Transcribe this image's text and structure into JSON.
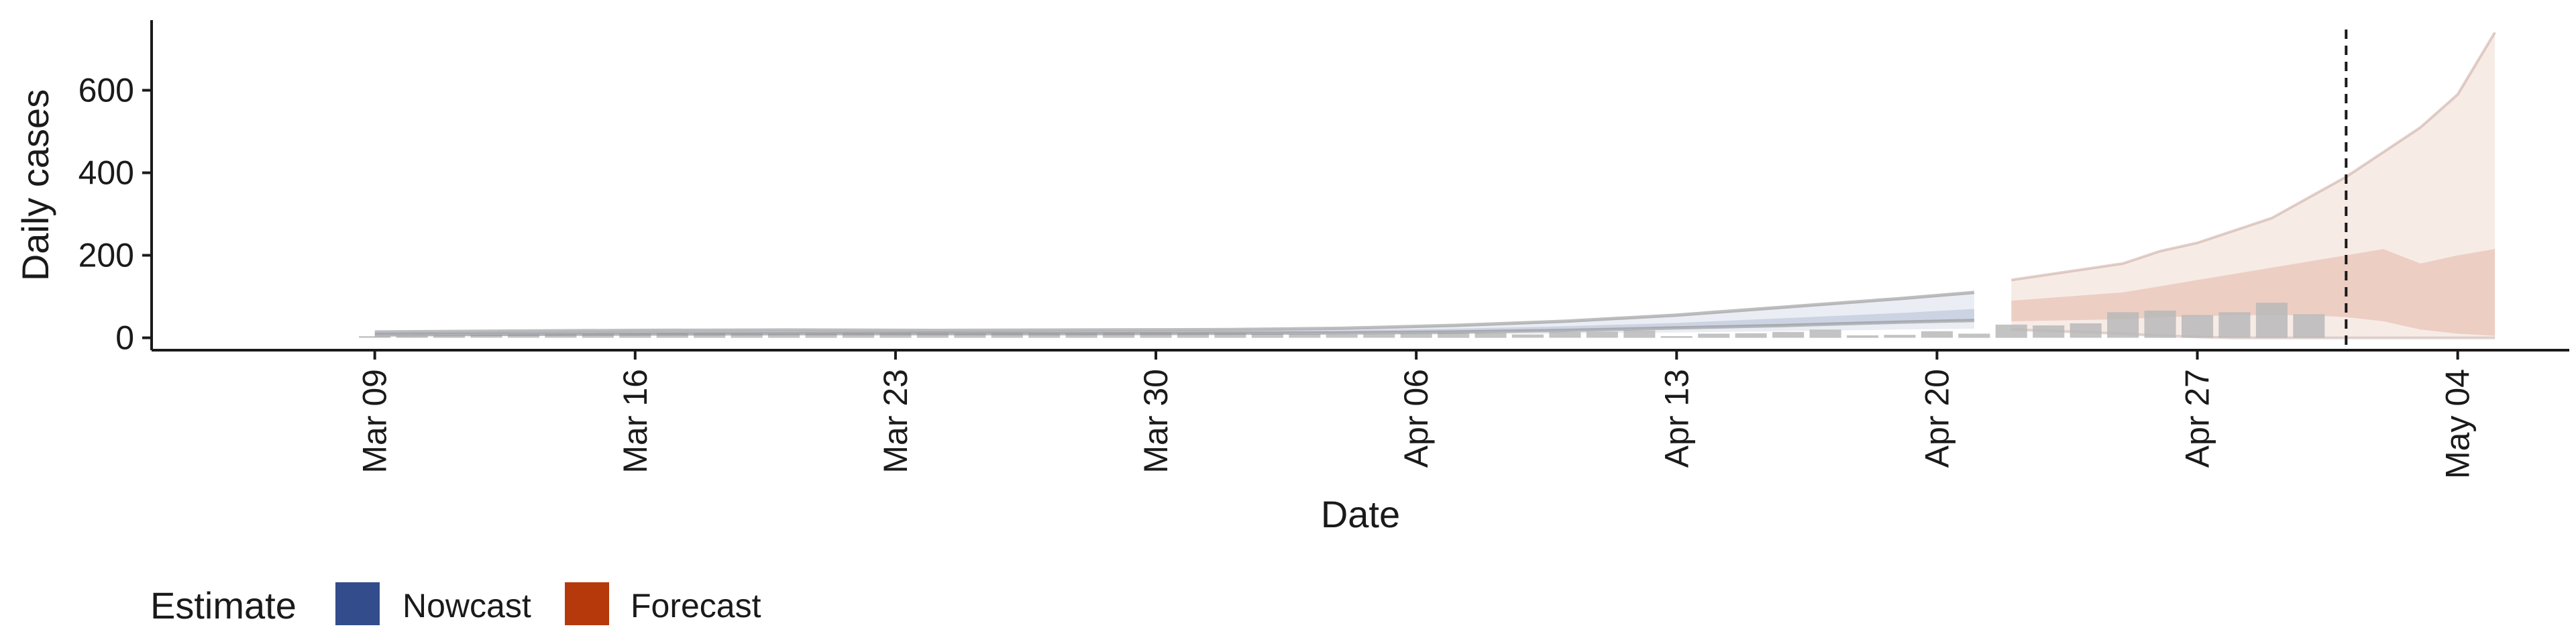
{
  "chart_data": {
    "type": "area",
    "xlabel": "Date",
    "ylabel": "Daily cases",
    "x_ticks": [
      "Mar 09",
      "Mar 16",
      "Mar 23",
      "Mar 30",
      "Apr 06",
      "Apr 13",
      "Apr 20",
      "Apr 27",
      "May 04"
    ],
    "y_ticks": [
      0,
      200,
      400,
      600
    ],
    "ylim": [
      -30,
      770
    ],
    "xlim": [
      "2020-03-03",
      "2020-05-07"
    ],
    "vline_date": "2020-05-01",
    "grid": false,
    "legend": {
      "title": "Estimate",
      "position": "bottom-left",
      "items": [
        {
          "label": "Nowcast",
          "color": "#334d8c"
        },
        {
          "label": "Forecast",
          "color": "#b5390b"
        }
      ]
    },
    "colors": {
      "bars": "#b8b8b8",
      "nowcast": "#334d8c",
      "forecast": "#b5390b",
      "line": "#888888"
    },
    "bars": {
      "dates": [
        "2020-03-09",
        "2020-03-10",
        "2020-03-11",
        "2020-03-12",
        "2020-03-13",
        "2020-03-14",
        "2020-03-15",
        "2020-03-16",
        "2020-03-17",
        "2020-03-18",
        "2020-03-19",
        "2020-03-20",
        "2020-03-21",
        "2020-03-22",
        "2020-03-23",
        "2020-03-24",
        "2020-03-25",
        "2020-03-26",
        "2020-03-27",
        "2020-03-28",
        "2020-03-29",
        "2020-03-30",
        "2020-03-31",
        "2020-04-01",
        "2020-04-02",
        "2020-04-03",
        "2020-04-04",
        "2020-04-05",
        "2020-04-06",
        "2020-04-07",
        "2020-04-08",
        "2020-04-09",
        "2020-04-10",
        "2020-04-11",
        "2020-04-12",
        "2020-04-13",
        "2020-04-14",
        "2020-04-15",
        "2020-04-16",
        "2020-04-17",
        "2020-04-18",
        "2020-04-19",
        "2020-04-20",
        "2020-04-21",
        "2020-04-22",
        "2020-04-23",
        "2020-04-24",
        "2020-04-25",
        "2020-04-26",
        "2020-04-27",
        "2020-04-28",
        "2020-04-29",
        "2020-04-30"
      ],
      "values": [
        4,
        5,
        6,
        7,
        8,
        9,
        10,
        11,
        12,
        12,
        11,
        10,
        11,
        12,
        12,
        12,
        11,
        12,
        12,
        12,
        13,
        13,
        12,
        11,
        10,
        9,
        8,
        9,
        10,
        12,
        12,
        8,
        14,
        15,
        18,
        4,
        10,
        11,
        14,
        20,
        6,
        7,
        16,
        10,
        32,
        30,
        35,
        62,
        66,
        55,
        62,
        85,
        57
      ]
    },
    "nowcast": {
      "dates": [
        "2020-03-09",
        "2020-03-12",
        "2020-03-16",
        "2020-03-20",
        "2020-03-24",
        "2020-03-28",
        "2020-04-01",
        "2020-04-04",
        "2020-04-07",
        "2020-04-10",
        "2020-04-13",
        "2020-04-16",
        "2020-04-19",
        "2020-04-21"
      ],
      "outer_upper": [
        14,
        16,
        18,
        19,
        18,
        19,
        20,
        23,
        30,
        40,
        55,
        75,
        95,
        110
      ],
      "inner_upper": [
        11,
        13,
        14,
        15,
        15,
        16,
        16,
        18,
        22,
        28,
        36,
        48,
        60,
        70
      ],
      "inner_lower": [
        7,
        8,
        9,
        10,
        10,
        10,
        11,
        12,
        14,
        18,
        24,
        30,
        38,
        42
      ],
      "outer_lower": [
        3,
        4,
        5,
        6,
        6,
        6,
        7,
        7,
        8,
        10,
        13,
        16,
        20,
        22
      ]
    },
    "forecast": {
      "dates": [
        "2020-04-22",
        "2020-04-25",
        "2020-04-26",
        "2020-04-27",
        "2020-04-28",
        "2020-04-29",
        "2020-04-30",
        "2020-05-01",
        "2020-05-02",
        "2020-05-03",
        "2020-05-04",
        "2020-05-05"
      ],
      "outer_upper": [
        140,
        180,
        210,
        230,
        260,
        290,
        340,
        390,
        450,
        510,
        590,
        740
      ],
      "inner_upper": [
        90,
        110,
        125,
        140,
        155,
        170,
        185,
        200,
        215,
        180,
        200,
        215
      ],
      "inner_lower": [
        40,
        45,
        50,
        52,
        55,
        55,
        55,
        50,
        40,
        20,
        10,
        5
      ],
      "outer_lower": [
        20,
        10,
        5,
        2,
        0,
        0,
        0,
        0,
        0,
        0,
        0,
        0
      ]
    },
    "estimate_line": {
      "dates": [
        "2020-03-09",
        "2020-03-12",
        "2020-03-16",
        "2020-03-20",
        "2020-03-24",
        "2020-03-28",
        "2020-04-01",
        "2020-04-04",
        "2020-04-07",
        "2020-04-10",
        "2020-04-13",
        "2020-04-16",
        "2020-04-19",
        "2020-04-21"
      ],
      "upper": [
        14,
        16,
        18,
        19,
        18,
        19,
        20,
        23,
        30,
        40,
        55,
        75,
        95,
        110
      ],
      "lower": [
        7,
        8,
        9,
        10,
        10,
        10,
        11,
        12,
        14,
        18,
        24,
        30,
        38,
        42
      ]
    }
  }
}
